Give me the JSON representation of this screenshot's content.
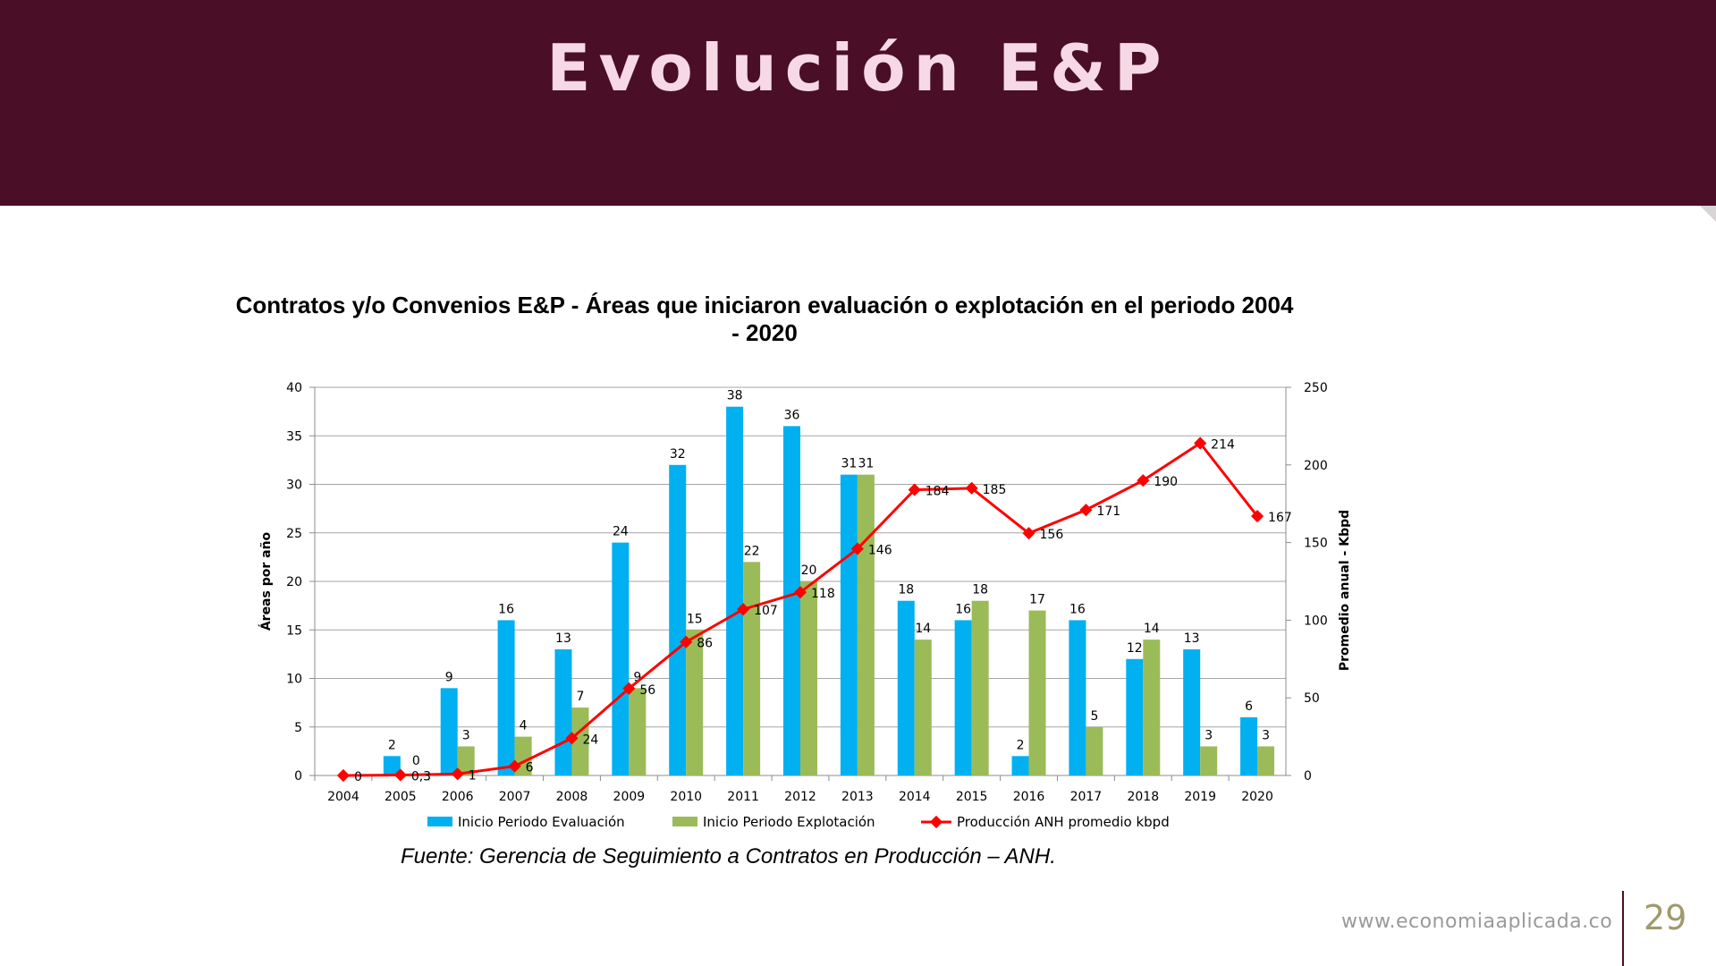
{
  "header": {
    "title": "Evolución E&P"
  },
  "chart_data": {
    "type": "bar",
    "title": "Contratos y/o Convenios E&P - Áreas que iniciaron evaluación o explotación en el periodo 2004 - 2020",
    "ylabel": "Áreas por año",
    "y2label": "Promedio anual - Kbpd",
    "ylim": [
      0,
      40
    ],
    "y2lim": [
      0,
      250
    ],
    "yticks": [
      0,
      5,
      10,
      15,
      20,
      25,
      30,
      35,
      40
    ],
    "y2ticks": [
      0,
      50,
      100,
      150,
      200,
      250
    ],
    "grid": true,
    "legend_position": "bottom",
    "categories": [
      "2004",
      "2005",
      "2006",
      "2007",
      "2008",
      "2009",
      "2010",
      "2011",
      "2012",
      "2013",
      "2014",
      "2015",
      "2016",
      "2017",
      "2018",
      "2019",
      "2020"
    ],
    "series": [
      {
        "name": "Inicio Periodo Evaluación",
        "type": "bar",
        "color": "#00b0f0",
        "values": [
          0,
          2,
          9,
          16,
          13,
          24,
          32,
          38,
          36,
          31,
          18,
          16,
          2,
          16,
          12,
          13,
          6
        ],
        "labels": [
          "",
          "2",
          "9",
          "16",
          "13",
          "24",
          "32",
          "38",
          "36",
          "31",
          "18",
          "16",
          "2",
          "16",
          "12",
          "13",
          "6"
        ]
      },
      {
        "name": "Inicio Periodo Explotación",
        "type": "bar",
        "color": "#9bbb59",
        "values": [
          0,
          0,
          3,
          4,
          7,
          9,
          15,
          22,
          20,
          31,
          14,
          18,
          17,
          5,
          14,
          3,
          3
        ],
        "labels": [
          "",
          "0",
          "3",
          "4",
          "7",
          "9",
          "15",
          "22",
          "20",
          "31",
          "14",
          "18",
          "17",
          "5",
          "14",
          "3",
          "3"
        ]
      },
      {
        "name": "Producción ANH promedio kbpd",
        "type": "line",
        "axis": "right",
        "color": "#ff0000",
        "values": [
          0,
          0.3,
          1,
          6,
          24,
          56,
          86,
          107,
          118,
          146,
          184,
          185,
          156,
          171,
          190,
          214,
          167
        ],
        "labels": [
          "0",
          "0,3",
          "1",
          "6",
          "24",
          "56",
          "86",
          "107",
          "118",
          "146",
          "184",
          "185",
          "156",
          "171",
          "190",
          "214",
          "167"
        ]
      }
    ]
  },
  "source": "Fuente: Gerencia de Seguimiento a Contratos en Producción – ANH.",
  "footer": {
    "url": "www.economiaaplicada.co",
    "page": "29"
  }
}
